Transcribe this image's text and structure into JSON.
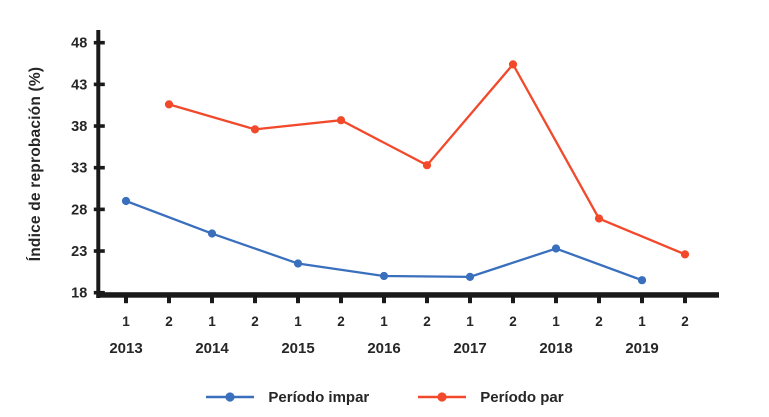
{
  "chart_data": {
    "type": "line",
    "title": "",
    "ylabel": "Índice de reprobación (%)",
    "xlabel": "",
    "ylim": [
      18,
      48
    ],
    "yticks": [
      48,
      43,
      38,
      33,
      28,
      23,
      18
    ],
    "semester_tick_labels": [
      "1",
      "2",
      "1",
      "2",
      "1",
      "2",
      "1",
      "2",
      "1",
      "2",
      "1",
      "2",
      "1",
      "2"
    ],
    "year_labels": [
      "2013",
      "2014",
      "2015",
      "2016",
      "2017",
      "2018",
      "2019"
    ],
    "grid": false,
    "legend_position": "bottom",
    "axis_color": "#1a1a1a",
    "text_color": "#262626",
    "series": [
      {
        "name": "Período impar",
        "color": "#3a6fbe",
        "points": [
          {
            "year": "2013",
            "semester": "1",
            "value": 29.0
          },
          {
            "year": "2014",
            "semester": "1",
            "value": 25.1
          },
          {
            "year": "2015",
            "semester": "1",
            "value": 21.5
          },
          {
            "year": "2016",
            "semester": "1",
            "value": 20.0
          },
          {
            "year": "2017",
            "semester": "1",
            "value": 19.9
          },
          {
            "year": "2018",
            "semester": "1",
            "value": 23.3
          },
          {
            "year": "2019",
            "semester": "1",
            "value": 19.5
          }
        ]
      },
      {
        "name": "Período par",
        "color": "#f2492b",
        "points": [
          {
            "year": "2013",
            "semester": "2",
            "value": 40.6
          },
          {
            "year": "2014",
            "semester": "2",
            "value": 37.6
          },
          {
            "year": "2015",
            "semester": "2",
            "value": 38.7
          },
          {
            "year": "2016",
            "semester": "2",
            "value": 33.3
          },
          {
            "year": "2017",
            "semester": "2",
            "value": 45.4
          },
          {
            "year": "2018",
            "semester": "2",
            "value": 26.9
          },
          {
            "year": "2019",
            "semester": "2",
            "value": 22.6
          }
        ]
      }
    ]
  }
}
